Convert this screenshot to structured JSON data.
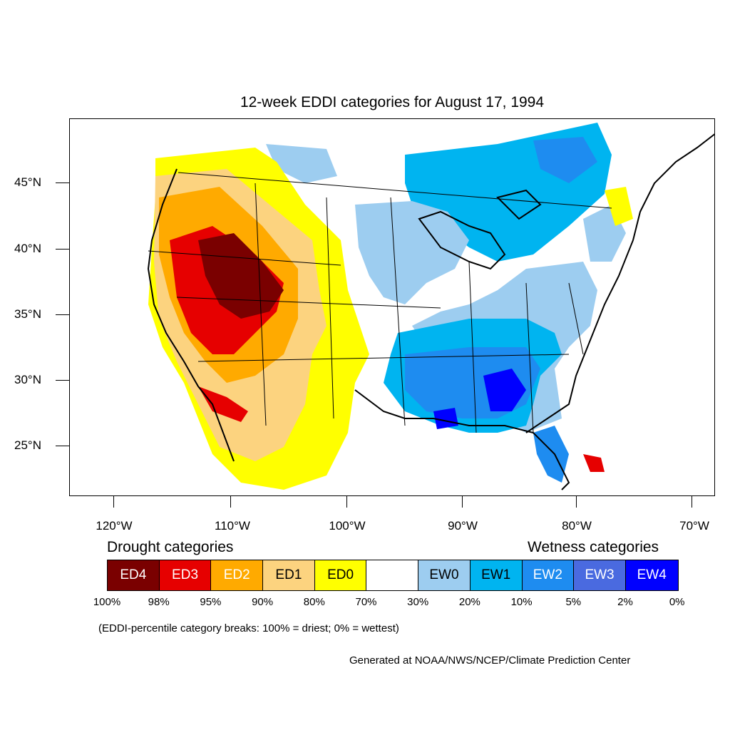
{
  "title": "12-week EDDI categories for August 17, 1994",
  "lat_labels": [
    "45°N",
    "40°N",
    "35°N",
    "30°N",
    "25°N"
  ],
  "lon_labels": [
    "120°W",
    "110°W",
    "100°W",
    "90°W",
    "80°W",
    "70°W"
  ],
  "legend": {
    "drought_heading": "Drought categories",
    "wetness_heading": "Wetness categories",
    "categories": [
      {
        "label": "ED4",
        "color": "#7a0000",
        "text_color": "#ffffff"
      },
      {
        "label": "ED3",
        "color": "#e60000",
        "text_color": "#ffffff"
      },
      {
        "label": "ED2",
        "color": "#ffaa00",
        "text_color": "#ffffff"
      },
      {
        "label": "ED1",
        "color": "#fcd37f",
        "text_color": "#000000"
      },
      {
        "label": "ED0",
        "color": "#ffff00",
        "text_color": "#000000"
      },
      {
        "label": "",
        "color": "#ffffff",
        "text_color": "#000000"
      },
      {
        "label": "EW0",
        "color": "#9dcdf0",
        "text_color": "#000000"
      },
      {
        "label": "EW1",
        "color": "#00b4f0",
        "text_color": "#000000"
      },
      {
        "label": "EW2",
        "color": "#1e8cf0",
        "text_color": "#ffffff"
      },
      {
        "label": "EW3",
        "color": "#4a6ae0",
        "text_color": "#ffffff"
      },
      {
        "label": "EW4",
        "color": "#0000ff",
        "text_color": "#ffffff"
      }
    ],
    "percent_breaks": [
      "100%",
      "98%",
      "95%",
      "90%",
      "80%",
      "70%",
      "30%",
      "20%",
      "10%",
      "5%",
      "2%",
      "0%"
    ]
  },
  "note": "(EDDI-percentile category breaks: 100% = driest; 0% = wettest)",
  "credit": "Generated at NOAA/NWS/NCEP/Climate Prediction Center"
}
